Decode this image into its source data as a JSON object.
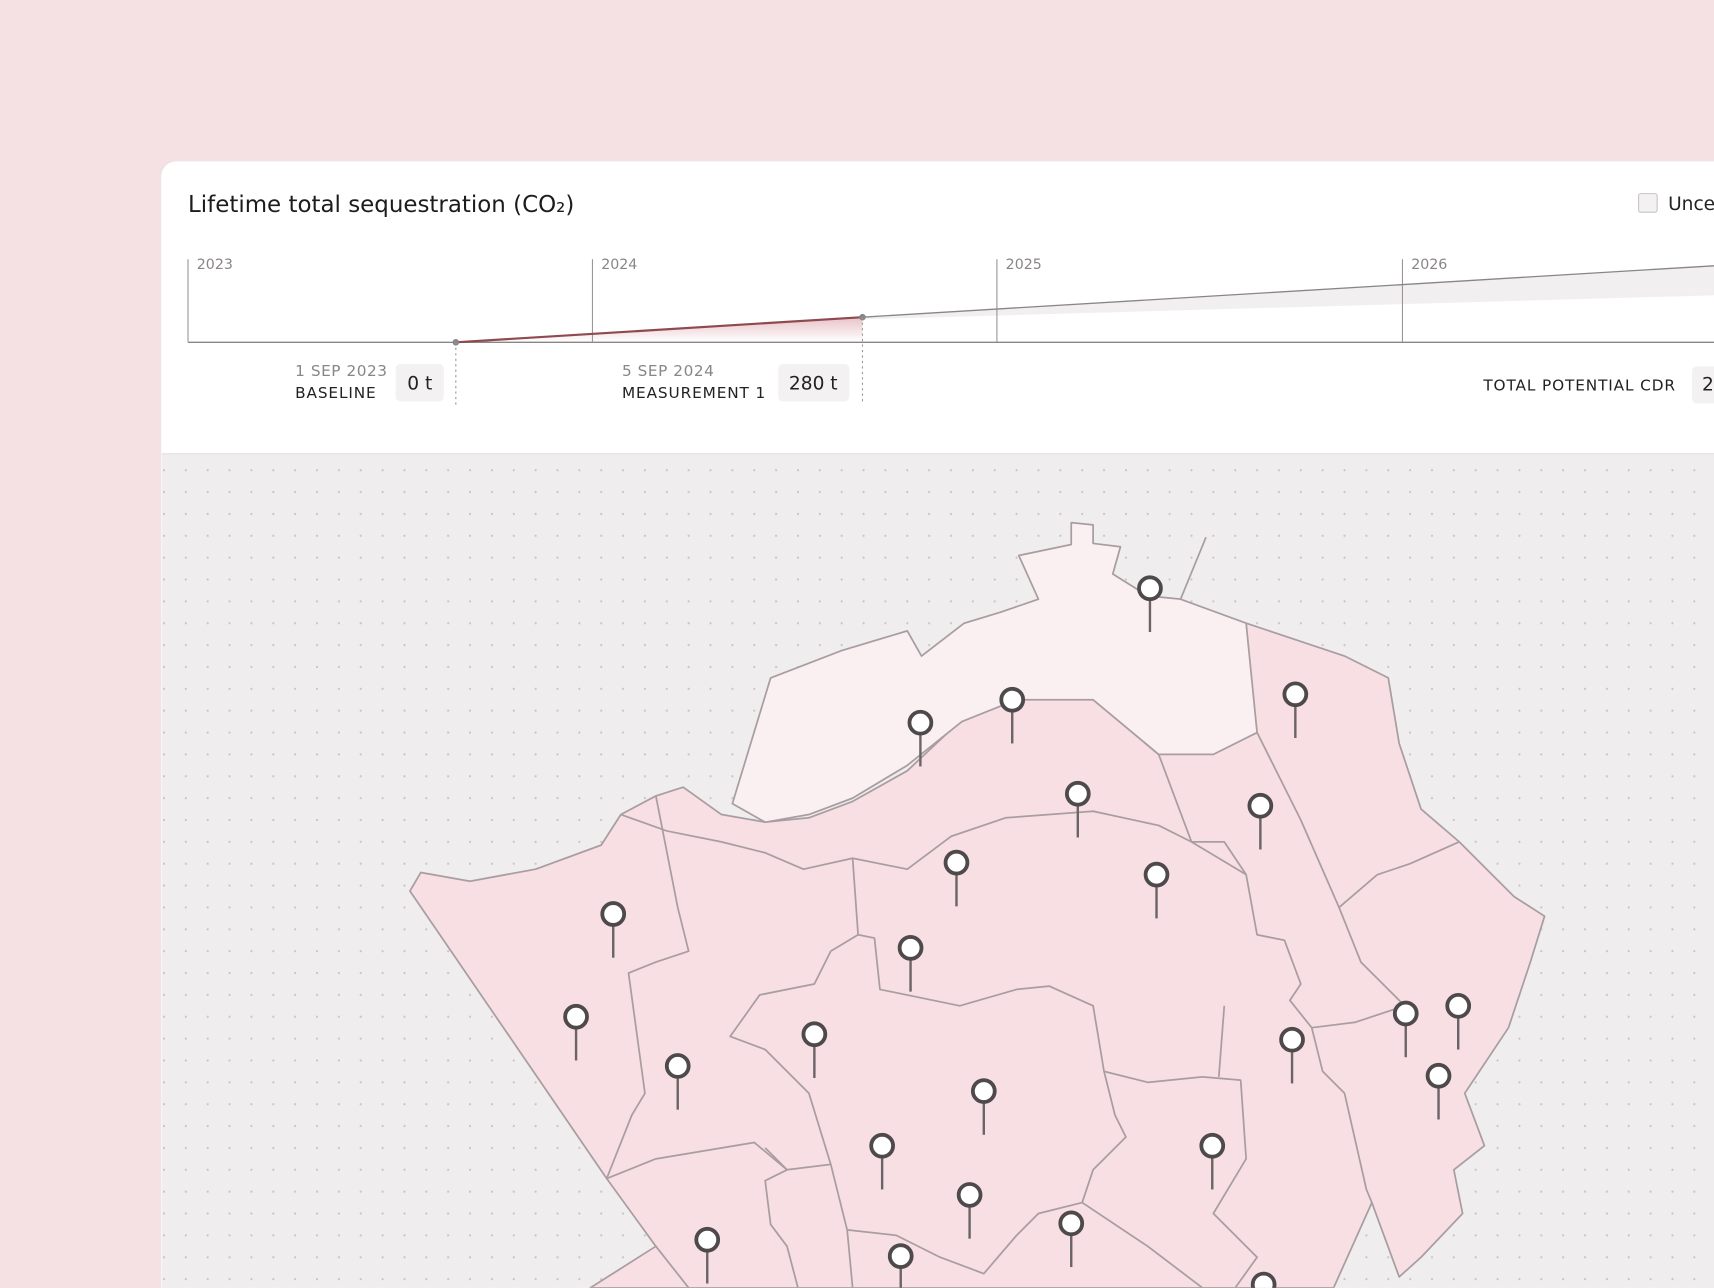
{
  "header": {
    "title": "Lifetime total sequestration (CO₂)",
    "toggle_label": "Unce"
  },
  "timeline": {
    "years": [
      "2023",
      "2024",
      "2025",
      "2026"
    ],
    "events": [
      {
        "date": "1 SEP 2023",
        "label": "BASELINE",
        "amount": "0 t"
      },
      {
        "date": "5 SEP 2024",
        "label": "MEASUREMENT 1",
        "amount": "280 t"
      }
    ],
    "total_label": "TOTAL POTENTIAL CDR",
    "total_amount": "2"
  }
}
